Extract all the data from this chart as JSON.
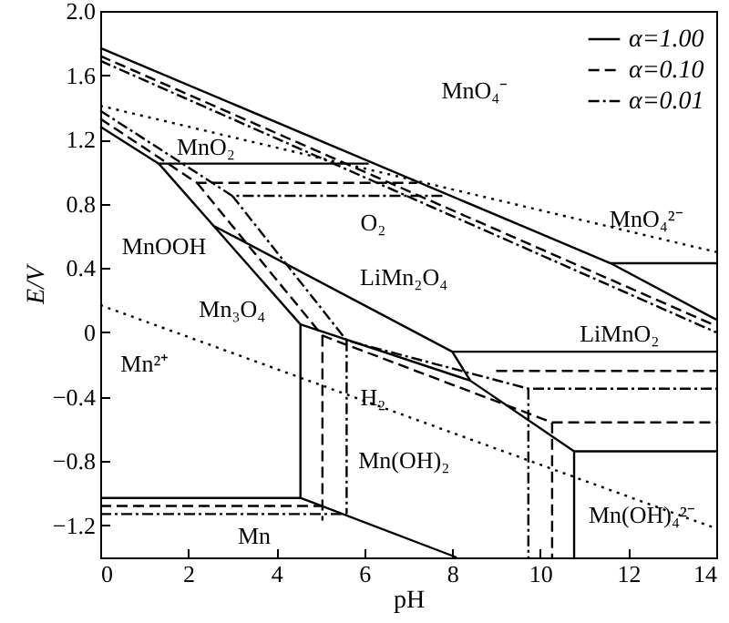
{
  "chart_data": {
    "type": "line",
    "xlabel": "pH",
    "ylabel": "E/V",
    "xlim": [
      0,
      14
    ],
    "xticks": [
      0,
      2,
      4,
      6,
      8,
      10,
      12,
      14
    ],
    "ylim": [
      -1.4,
      2.0
    ],
    "yticks": [
      {
        "value": -1.2,
        "label": "−1.2"
      },
      {
        "value": -0.8,
        "label": "−0.8"
      },
      {
        "value": -0.4,
        "label": "−0.4"
      },
      0,
      {
        "value": 0.4,
        "label": "0.4"
      },
      {
        "value": 0.8,
        "label": "0.8"
      },
      {
        "value": 1.2,
        "label": "1.2"
      },
      {
        "value": 1.6,
        "label": "1.6"
      },
      {
        "value": 2.0,
        "label": "2.0"
      }
    ],
    "grid": false,
    "legend": "top right",
    "marker": "none",
    "series": [
      {
        "name": "α=1.00",
        "color": "#000000",
        "line_style": "solid",
        "x": [
          0,
          11.6,
          14
        ],
        "values": [
          1.77,
          0.43,
          0.08
        ]
      },
      {
        "name": "α=0.10",
        "color": "#000000",
        "line_style": "dashed",
        "x": [
          0,
          14
        ],
        "values": [
          1.72,
          0.04
        ]
      },
      {
        "name": "α=0.01",
        "color": "#000000",
        "line_style": "dashdot",
        "x": [
          0,
          14
        ],
        "values": [
          1.69,
          0.0
        ]
      },
      {
        "color": "#000000",
        "line_style": "solid",
        "x": [
          11.6,
          14
        ],
        "values": [
          0.43,
          0.43
        ]
      },
      {
        "color": "#000000",
        "line_style": "solid",
        "x": [
          0,
          1.33,
          6.1
        ],
        "values": [
          1.28,
          1.05,
          1.05
        ]
      },
      {
        "color": "#000000",
        "line_style": "solid",
        "x": [
          1.33,
          4.55,
          4.55
        ],
        "values": [
          1.05,
          0.05,
          -1.03
        ]
      },
      {
        "color": "#000000",
        "line_style": "solid",
        "x": [
          2.6,
          8.0,
          8.41
        ],
        "values": [
          0.66,
          -0.12,
          -0.3
        ]
      },
      {
        "color": "#000000",
        "line_style": "solid",
        "x": [
          8.0,
          14
        ],
        "values": [
          -0.12,
          -0.12
        ]
      },
      {
        "color": "#000000",
        "line_style": "solid",
        "x": [
          4.55,
          8.41,
          10.77,
          14
        ],
        "values": [
          0.05,
          -0.3,
          -0.74,
          -0.74
        ]
      },
      {
        "color": "#000000",
        "line_style": "solid",
        "x": [
          10.77,
          10.77
        ],
        "values": [
          -0.74,
          -1.4
        ]
      },
      {
        "color": "#000000",
        "line_style": "solid",
        "x": [
          0,
          4.55,
          8.1
        ],
        "values": [
          -1.03,
          -1.03,
          -1.4
        ]
      },
      {
        "color": "#000000",
        "line_style": "dashed",
        "x": [
          0,
          2.2,
          7.2
        ],
        "values": [
          1.33,
          0.93,
          0.93
        ]
      },
      {
        "color": "#000000",
        "line_style": "dashed",
        "x": [
          2.2,
          5.05,
          10.27,
          14
        ],
        "values": [
          0.93,
          -0.02,
          -0.56,
          -0.56
        ]
      },
      {
        "color": "#000000",
        "line_style": "dashed",
        "x": [
          10.27,
          10.27
        ],
        "values": [
          -0.56,
          -1.4
        ]
      },
      {
        "color": "#000000",
        "line_style": "dashed",
        "x": [
          5.05,
          5.05
        ],
        "values": [
          -0.02,
          -1.17
        ]
      },
      {
        "color": "#000000",
        "line_style": "dashed",
        "x": [
          0,
          5.05
        ],
        "values": [
          -1.08,
          -1.08
        ]
      },
      {
        "color": "#000000",
        "line_style": "dashed",
        "x": [
          9.0,
          14
        ],
        "values": [
          -0.24,
          -0.24
        ]
      },
      {
        "color": "#000000",
        "line_style": "dashdot",
        "x": [
          0,
          3.0,
          7.8
        ],
        "values": [
          1.38,
          0.85,
          0.85
        ]
      },
      {
        "color": "#000000",
        "line_style": "dashdot",
        "x": [
          3.0,
          5.6,
          9.73,
          14
        ],
        "values": [
          0.85,
          -0.05,
          -0.35,
          -0.35
        ]
      },
      {
        "color": "#000000",
        "line_style": "dashdot",
        "x": [
          9.73,
          9.73
        ],
        "values": [
          -0.35,
          -1.4
        ]
      },
      {
        "color": "#000000",
        "line_style": "dashdot",
        "x": [
          5.6,
          5.6
        ],
        "values": [
          -0.05,
          -1.13
        ]
      },
      {
        "color": "#000000",
        "line_style": "dashdot",
        "x": [
          0,
          5.6
        ],
        "values": [
          -1.13,
          -1.13
        ]
      },
      {
        "color": "#000000",
        "line_style": "dotted",
        "x": [
          0,
          14
        ],
        "values": [
          1.41,
          0.5
        ]
      },
      {
        "color": "#000000",
        "line_style": "dotted",
        "x": [
          0,
          14
        ],
        "values": [
          0.17,
          -1.22
        ]
      }
    ],
    "annotations": [
      "MnO₄⁻",
      "MnO₂",
      "O₂",
      "LiMn₂O₄",
      "MnOOH",
      "Mn₃O₄",
      "Mn²⁺",
      "H₂",
      "Mn(OH)₂",
      "LiMnO₂",
      "MnO₄²⁻",
      "Mn(OH)₄²⁻",
      "Mn"
    ]
  }
}
